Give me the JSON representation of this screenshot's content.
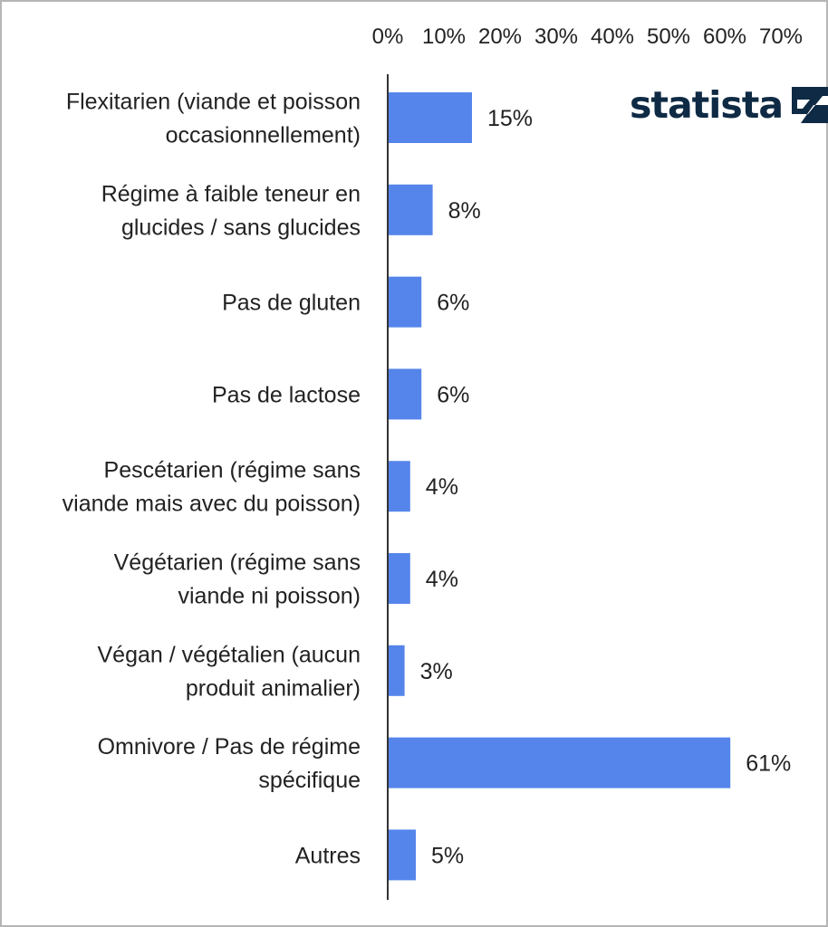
{
  "chart_data": {
    "type": "bar",
    "orientation": "horizontal",
    "categories": [
      [
        "Flexitarien (viande et poisson",
        "occasionnellement)"
      ],
      [
        "Régime à faible teneur en",
        "glucides / sans glucides"
      ],
      [
        "Pas de gluten"
      ],
      [
        "Pas de lactose"
      ],
      [
        "Pescétarien (régime sans",
        "viande mais avec du poisson)"
      ],
      [
        "Végétarien (régime sans",
        "viande ni poisson)"
      ],
      [
        "Végan / végétalien (aucun",
        "produit animalier)"
      ],
      [
        "Omnivore / Pas de régime",
        "spécifique"
      ],
      [
        "Autres"
      ]
    ],
    "values": [
      15,
      8,
      6,
      6,
      4,
      4,
      3,
      61,
      5
    ],
    "value_labels": [
      "15%",
      "8%",
      "6%",
      "6%",
      "4%",
      "4%",
      "3%",
      "61%",
      "5%"
    ],
    "xlim": [
      0,
      70
    ],
    "xticks": [
      0,
      10,
      20,
      30,
      40,
      50,
      60,
      70
    ],
    "xtick_labels": [
      "0%",
      "10%",
      "20%",
      "30%",
      "40%",
      "50%",
      "60%",
      "70%"
    ],
    "axis_position": "top",
    "grid": false,
    "bar_color": "#5585eb",
    "title": "",
    "xlabel": "",
    "ylabel": ""
  },
  "branding": {
    "logo_text": "statista",
    "logo_icon": "statista-logo-icon",
    "logo_color": "#0f2a44"
  }
}
